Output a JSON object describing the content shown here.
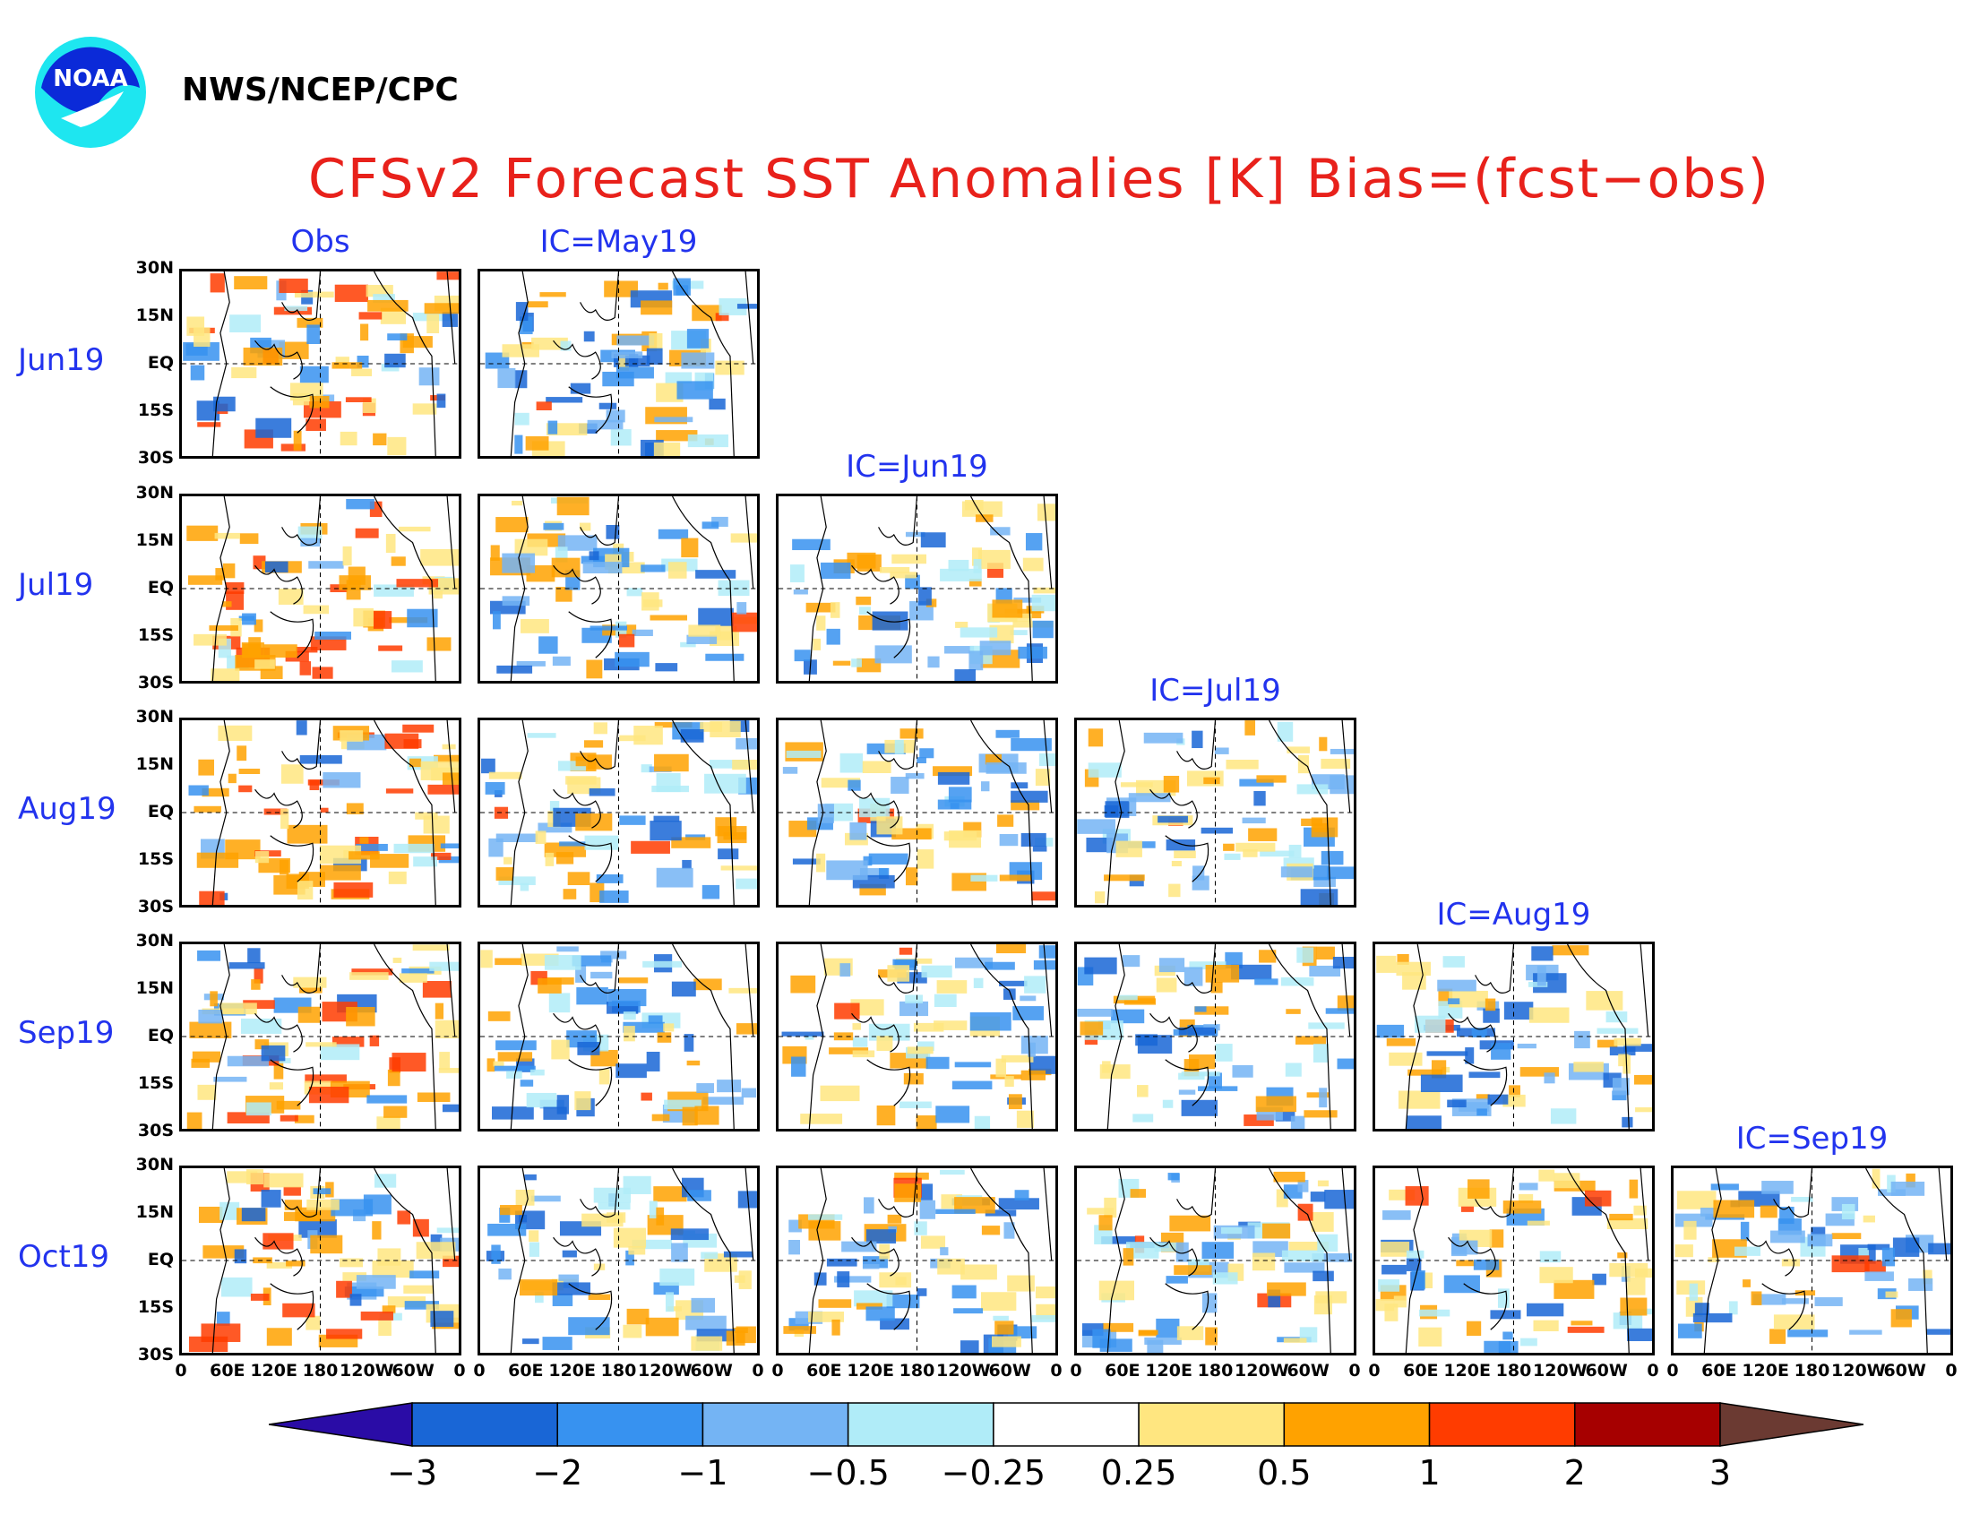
{
  "header": {
    "agency": "NWS/NCEP/CPC",
    "logo_text": "NOAA",
    "title": "CFSv2 Forecast SST Anomalies [K] Bias=(fcst−obs)"
  },
  "columns": [
    "Obs",
    "IC=May19",
    "IC=Jun19",
    "IC=Jul19",
    "IC=Aug19",
    "IC=Sep19"
  ],
  "rows": [
    "Jun19",
    "Jul19",
    "Aug19",
    "Sep19",
    "Oct19"
  ],
  "lat_ticks": [
    "30N",
    "15N",
    "EQ",
    "15S",
    "30S"
  ],
  "lon_ticks": [
    "0",
    "60E",
    "120E",
    "180",
    "120W",
    "60W",
    "0"
  ],
  "colorbar": {
    "labels": [
      "−3",
      "−2",
      "−1",
      "−0.5",
      "−0.25",
      "0.25",
      "0.5",
      "1",
      "2",
      "3"
    ],
    "colors": [
      "#2a0ca6",
      "#1966d6",
      "#3792f0",
      "#74b4f4",
      "#b0ecf8",
      "#ffffff",
      "#ffe680",
      "#ffa200",
      "#ff3c00",
      "#a60000",
      "#6b3a32"
    ]
  }
}
